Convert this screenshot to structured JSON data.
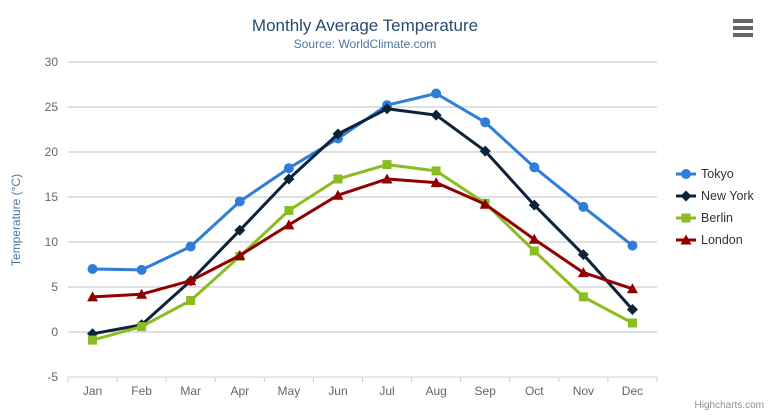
{
  "title": "Monthly Average Temperature",
  "subtitle": "Source: WorldClimate.com",
  "credit": "Highcharts.com",
  "colors": {
    "title": "#274b6d",
    "subtitle": "#4d759e",
    "axis_labels": "#666666",
    "axis_title": "#4d759e",
    "gridline": "#c0c0c0",
    "axis_line": "#c0d0e0",
    "legend_text": "#333333",
    "credit_text": "#909090"
  },
  "chart_data": {
    "type": "line",
    "title": "Monthly Average Temperature",
    "subtitle": "Source: WorldClimate.com",
    "categories": [
      "Jan",
      "Feb",
      "Mar",
      "Apr",
      "May",
      "Jun",
      "Jul",
      "Aug",
      "Sep",
      "Oct",
      "Nov",
      "Dec"
    ],
    "series": [
      {
        "name": "Tokyo",
        "color": "#2f7ed8",
        "marker": "circle",
        "values": [
          7.0,
          6.9,
          9.5,
          14.5,
          18.2,
          21.5,
          25.2,
          26.5,
          23.3,
          18.3,
          13.9,
          9.6
        ]
      },
      {
        "name": "New York",
        "color": "#0d233a",
        "marker": "diamond",
        "values": [
          -0.2,
          0.8,
          5.7,
          11.3,
          17.0,
          22.0,
          24.8,
          24.1,
          20.1,
          14.1,
          8.6,
          2.5
        ]
      },
      {
        "name": "Berlin",
        "color": "#8bbc21",
        "marker": "square",
        "values": [
          -0.9,
          0.6,
          3.5,
          8.4,
          13.5,
          17.0,
          18.6,
          17.9,
          14.3,
          9.0,
          3.9,
          1.0
        ]
      },
      {
        "name": "London",
        "color": "#910000",
        "marker": "triangle",
        "values": [
          3.9,
          4.2,
          5.7,
          8.5,
          11.9,
          15.2,
          17.0,
          16.6,
          14.2,
          10.3,
          6.6,
          4.8
        ]
      }
    ],
    "xlabel": "",
    "ylabel": "Temperature (°C)",
    "ylim": [
      -5,
      30
    ],
    "ytick_interval": 5,
    "grid": true,
    "legend_position": "right"
  }
}
